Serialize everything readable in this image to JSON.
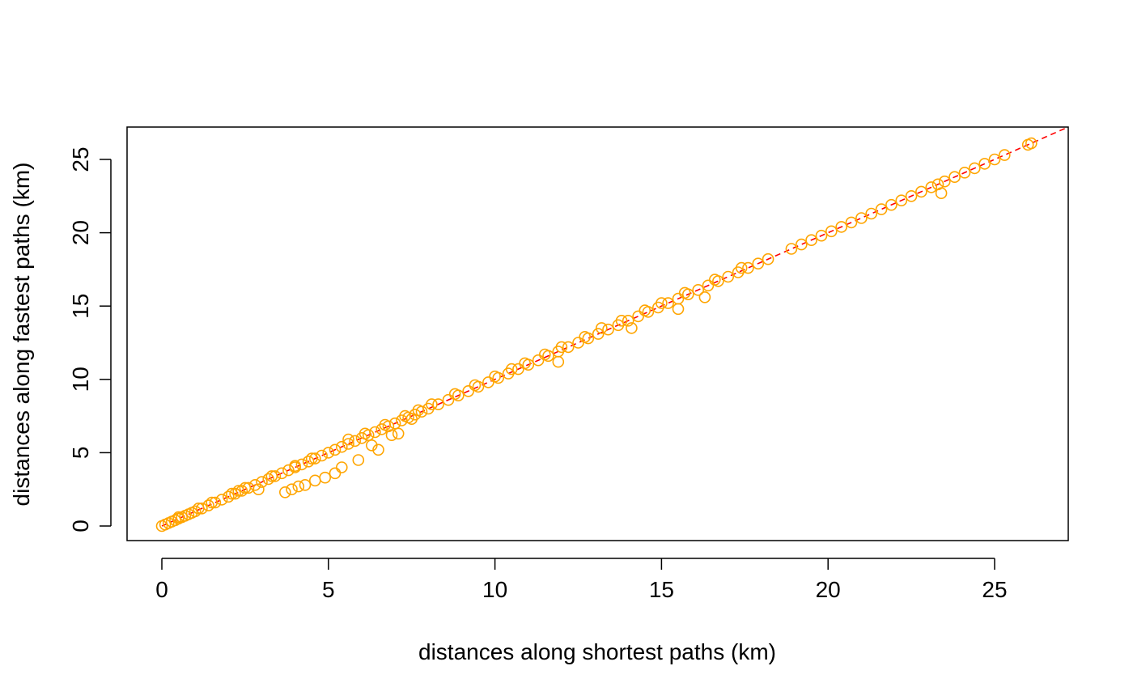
{
  "chart_data": {
    "type": "scatter",
    "title": "",
    "xlabel": "distances along shortest paths (km)",
    "ylabel": "distances along fastest paths (km)",
    "xlim": [
      0,
      27
    ],
    "ylim": [
      0,
      27
    ],
    "xticks": [
      0,
      5,
      10,
      15,
      20,
      25
    ],
    "yticks": [
      0,
      5,
      10,
      15,
      20,
      25
    ],
    "xtick_labels": [
      "0",
      "5",
      "10",
      "15",
      "20",
      "25"
    ],
    "ytick_labels": [
      "0",
      "5",
      "10",
      "15",
      "20",
      "25"
    ],
    "grid": false,
    "point_color": "#FFA500",
    "reference_line": {
      "type": "y = x",
      "color": "#FF0000",
      "style": "dashed"
    },
    "series": [
      {
        "marker": "open-circle",
        "x": [
          0,
          0.1,
          0.2,
          0.3,
          0.4,
          0.5,
          0.6,
          0.7,
          0.8,
          0.9,
          1.0,
          1.2,
          1.4,
          1.6,
          1.8,
          2.0,
          2.2,
          2.4,
          2.6,
          2.8,
          3.0,
          3.2,
          3.4,
          3.6,
          3.8,
          4.0,
          4.2,
          4.4,
          4.6,
          4.8,
          5.0,
          5.2,
          5.4,
          5.6,
          5.8,
          6.0,
          6.2,
          6.4,
          6.6,
          6.8,
          7.0,
          7.2,
          7.4,
          7.6,
          7.8,
          8.0,
          8.3,
          8.6,
          8.9,
          9.2,
          9.5,
          9.8,
          10.1,
          10.4,
          10.7,
          11.0,
          11.3,
          11.6,
          11.9,
          12.2,
          12.5,
          12.8,
          13.1,
          13.4,
          13.7,
          14.0,
          14.3,
          14.6,
          14.9,
          15.2,
          15.5,
          15.8,
          16.1,
          16.4,
          16.7,
          17.0,
          17.3,
          17.6,
          17.9,
          18.2,
          18.9,
          19.2,
          19.5,
          19.8,
          20.1,
          20.4,
          20.7,
          21.0,
          21.3,
          21.6,
          21.9,
          22.2,
          22.5,
          22.8,
          23.1,
          23.3,
          23.5,
          23.8,
          24.1,
          24.4,
          24.7,
          25.0,
          25.3,
          26.0,
          26.1,
          2.3,
          2.9,
          3.7,
          3.9,
          4.1,
          4.3,
          4.6,
          4.9,
          5.2,
          5.4,
          5.9,
          6.3,
          6.5,
          6.9,
          7.1,
          7.5,
          11.9,
          14.1,
          15.5,
          16.3,
          23.4,
          0.5,
          1.1,
          1.5,
          2.1,
          2.5,
          3.3,
          4.0,
          4.5,
          5.6,
          6.1,
          6.7,
          7.3,
          7.7,
          8.1,
          8.8,
          9.4,
          10.0,
          10.5,
          10.9,
          11.5,
          12.0,
          12.7,
          13.2,
          13.8,
          14.5,
          15.0,
          15.7,
          16.6,
          17.4
        ],
        "y": [
          0,
          0.1,
          0.2,
          0.3,
          0.4,
          0.5,
          0.6,
          0.7,
          0.8,
          0.9,
          1.0,
          1.2,
          1.4,
          1.6,
          1.8,
          2.0,
          2.2,
          2.4,
          2.6,
          2.8,
          3.0,
          3.2,
          3.4,
          3.6,
          3.8,
          4.0,
          4.2,
          4.4,
          4.6,
          4.8,
          5.0,
          5.2,
          5.4,
          5.6,
          5.8,
          6.0,
          6.2,
          6.4,
          6.6,
          6.8,
          7.0,
          7.2,
          7.4,
          7.6,
          7.8,
          8.0,
          8.3,
          8.6,
          8.9,
          9.2,
          9.5,
          9.8,
          10.1,
          10.4,
          10.7,
          11.0,
          11.3,
          11.6,
          11.9,
          12.2,
          12.5,
          12.8,
          13.1,
          13.4,
          13.7,
          14.0,
          14.3,
          14.6,
          14.9,
          15.2,
          15.5,
          15.8,
          16.1,
          16.4,
          16.7,
          17.0,
          17.3,
          17.6,
          17.9,
          18.2,
          18.9,
          19.2,
          19.5,
          19.8,
          20.1,
          20.4,
          20.7,
          21.0,
          21.3,
          21.6,
          21.9,
          22.2,
          22.5,
          22.8,
          23.1,
          23.3,
          23.5,
          23.8,
          24.1,
          24.4,
          24.7,
          25.0,
          25.3,
          26.0,
          26.1,
          2.4,
          2.5,
          2.3,
          2.5,
          2.7,
          2.8,
          3.1,
          3.3,
          3.6,
          4.0,
          4.5,
          5.5,
          5.2,
          6.2,
          6.3,
          7.3,
          11.2,
          13.5,
          14.8,
          15.6,
          22.7,
          0.6,
          1.2,
          1.6,
          2.2,
          2.6,
          3.4,
          4.1,
          4.6,
          5.9,
          6.3,
          6.9,
          7.5,
          7.9,
          8.3,
          9.0,
          9.6,
          10.2,
          10.7,
          11.1,
          11.7,
          12.2,
          12.9,
          13.5,
          14.0,
          14.7,
          15.2,
          15.9,
          16.8,
          17.6
        ]
      }
    ]
  }
}
